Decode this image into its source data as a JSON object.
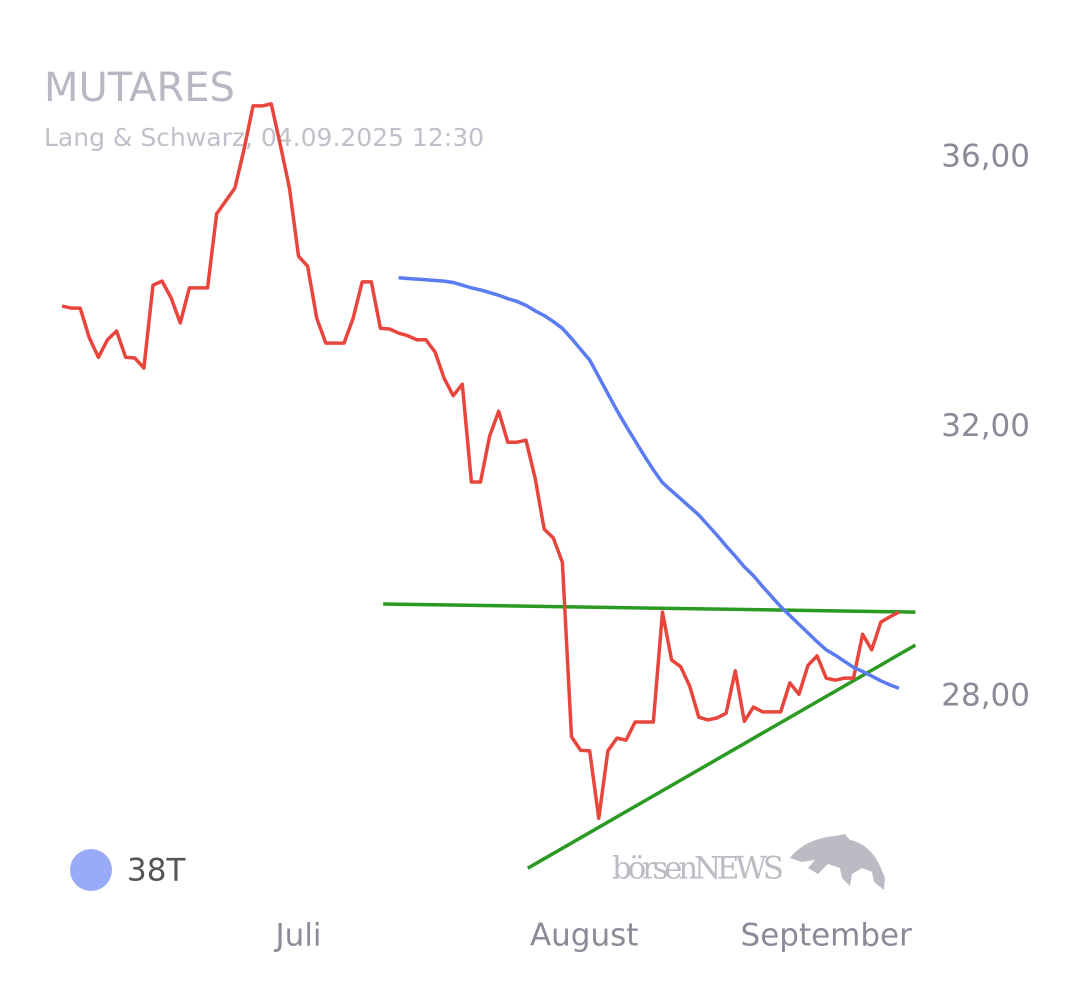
{
  "chart_data": {
    "type": "line",
    "title": "MUTARES",
    "subtitle": "Lang & Schwarz, 04.09.2025 12:30",
    "watermark": "börsenNEWS",
    "ylim": [
      25,
      37
    ],
    "yticks": [
      {
        "value": 36,
        "label": "36,00"
      },
      {
        "value": 32,
        "label": "32,00"
      },
      {
        "value": 28,
        "label": "28,00"
      }
    ],
    "xlim": [
      0,
      92
    ],
    "xticks": [
      {
        "value": 26,
        "label": "Juli"
      },
      {
        "value": 57.4,
        "label": "August"
      },
      {
        "value": 84,
        "label": "September"
      }
    ],
    "grid": false,
    "legend": "bottom-left",
    "series": [
      {
        "color": "#e8453c",
        "values": [
          33.8,
          33.77,
          33.77,
          33.33,
          33.04,
          33.3,
          33.43,
          33.04,
          33.03,
          32.88,
          34.11,
          34.17,
          33.92,
          33.55,
          34.07,
          34.07,
          34.07,
          35.17,
          35.36,
          35.55,
          36.12,
          36.77,
          36.77,
          36.8,
          36.19,
          35.55,
          34.54,
          34.39,
          33.62,
          33.25,
          33.25,
          33.25,
          33.62,
          34.16,
          34.16,
          33.47,
          33.46,
          33.4,
          33.36,
          33.3,
          33.3,
          33.12,
          32.73,
          32.47,
          32.64,
          31.19,
          31.19,
          31.87,
          32.24,
          31.78,
          31.78,
          31.81,
          31.25,
          30.49,
          30.36,
          30.0,
          27.41,
          27.21,
          27.2,
          26.2,
          27.2,
          27.39,
          27.36,
          27.63,
          27.63,
          27.63,
          29.26,
          28.55,
          28.45,
          28.16,
          27.7,
          27.66,
          27.69,
          27.76,
          28.39,
          27.64,
          27.85,
          27.78,
          27.78,
          27.78,
          28.21,
          28.04,
          28.47,
          28.61,
          28.28,
          28.25,
          28.28,
          28.28,
          28.93,
          28.7,
          29.11,
          29.19,
          29.26
        ]
      },
      {
        "name": "38T",
        "color": "#5b7bf0",
        "legend_color": "#99aaf8",
        "values": [
          null,
          null,
          null,
          null,
          null,
          null,
          null,
          null,
          null,
          null,
          null,
          null,
          null,
          null,
          null,
          null,
          null,
          null,
          null,
          null,
          null,
          null,
          null,
          null,
          null,
          null,
          null,
          null,
          null,
          null,
          null,
          null,
          null,
          null,
          null,
          null,
          null,
          34.22,
          34.21,
          34.2,
          34.19,
          34.18,
          34.17,
          34.15,
          34.11,
          34.07,
          34.04,
          34.0,
          33.96,
          33.91,
          33.87,
          33.81,
          33.73,
          33.66,
          33.57,
          33.47,
          33.32,
          33.16,
          33.0,
          32.75,
          32.5,
          32.25,
          32.02,
          31.8,
          31.58,
          31.37,
          31.18,
          31.06,
          30.94,
          30.82,
          30.7,
          30.55,
          30.4,
          30.24,
          30.09,
          29.93,
          29.8,
          29.64,
          29.49,
          29.34,
          29.21,
          29.08,
          28.95,
          28.82,
          28.7,
          28.62,
          28.53,
          28.44,
          28.38,
          28.31,
          28.24,
          28.18,
          28.13
        ]
      }
    ],
    "trendlines": [
      {
        "color": "#2a9a22",
        "x": [
          35.3,
          93.8
        ],
        "values": [
          29.38,
          29.26
        ]
      },
      {
        "color": "#2a9a22",
        "x": [
          51.2,
          93.8
        ],
        "values": [
          25.46,
          28.77
        ]
      }
    ]
  }
}
